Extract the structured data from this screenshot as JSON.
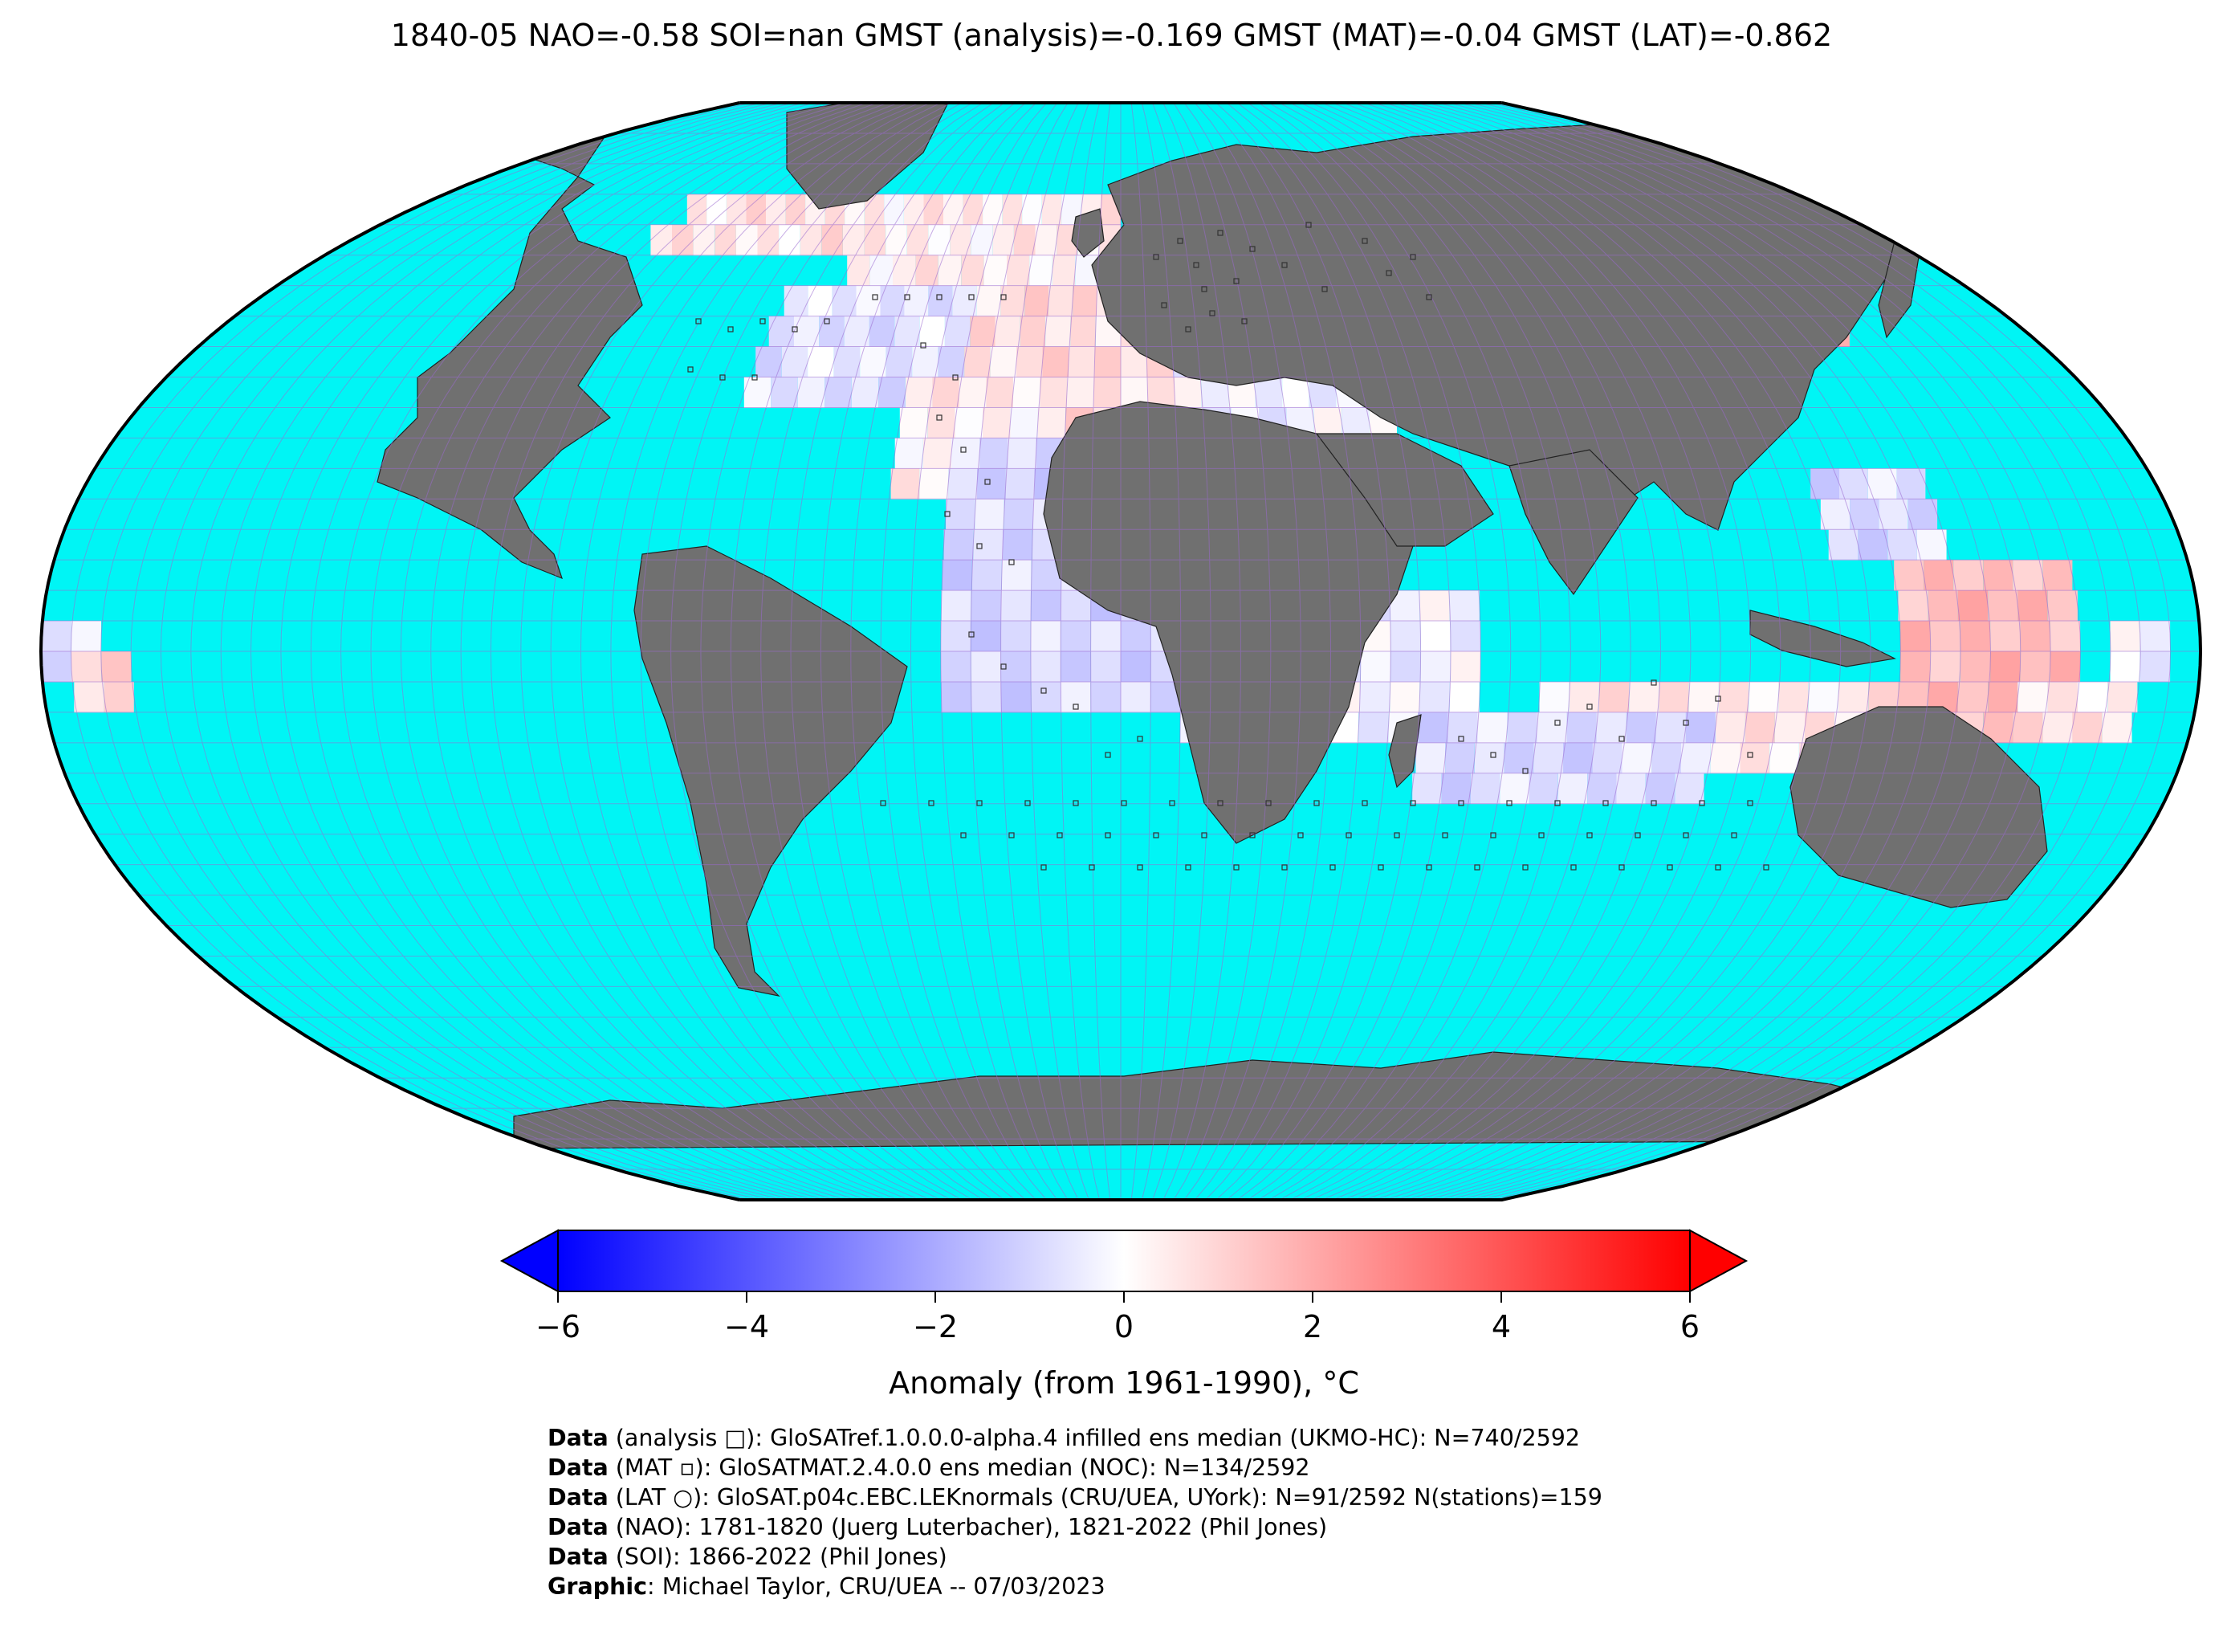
{
  "title": "1840-05 NAO=-0.58 SOI=nan GMST (analysis)=-0.169 GMST (MAT)=-0.04 GMST (LAT)=-0.862",
  "colors": {
    "ocean_nodata": "#00f5f5",
    "land_nodata": "#707070",
    "grid": "#9b6ad0",
    "cmap_min": "#0000ff",
    "cmap_mid": "#ffffff",
    "cmap_max": "#ff0000"
  },
  "colorbar": {
    "ticks": [
      -6,
      -4,
      -2,
      0,
      2,
      4,
      6
    ],
    "tick_labels": [
      "−6",
      "−4",
      "−2",
      "0",
      "2",
      "4",
      "6"
    ],
    "range": [
      -6,
      6
    ],
    "label": "Anomaly (from 1961-1990), °C",
    "extend": "both"
  },
  "credits": [
    {
      "bold": "Data",
      "text": " (analysis □): GloSATref.1.0.0.0-alpha.4 infilled ens median (UKMO-HC): N=740/2592"
    },
    {
      "bold": "Data",
      "text": " (MAT ▫): GloSATMAT.2.4.0.0 ens median (NOC): N=134/2592"
    },
    {
      "bold": "Data",
      "text": " (LAT ○): GloSAT.p04c.EBC.LEKnormals (CRU/UEA, UYork): N=91/2592 N(stations)=159"
    },
    {
      "bold": "Data",
      "text": " (NAO): 1781-1820 (Juerg Luterbacher), 1821-2022 (Phil Jones)"
    },
    {
      "bold": "Data",
      "text": " (SOI): 1866-2022 (Phil Jones)"
    },
    {
      "bold": "Graphic",
      "text": ": Michael Taylor, CRU/UEA -- 07/03/2023"
    }
  ]
}
